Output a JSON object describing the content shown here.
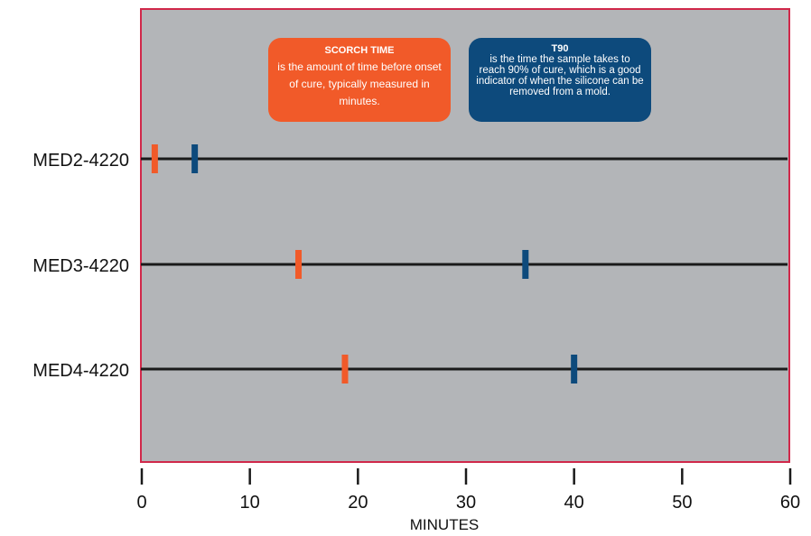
{
  "colors": {
    "plot_background": "#b3b5b8",
    "plot_border": "#d0284a",
    "scorch": "#f15a29",
    "t90": "#0d4a7c",
    "line": "#1a1a1a",
    "text": "#111111"
  },
  "callouts": {
    "scorch": {
      "title": "SCORCH TIME",
      "body": "is the amount of time before onset of cure, typically measured in minutes."
    },
    "t90": {
      "title": "T90",
      "body": "is the time the sample takes to reach 90% of cure, which is a good indicator of when the silicone can be removed from a mold."
    }
  },
  "chart_data": {
    "type": "scatter",
    "title": "",
    "xlabel": "MINUTES",
    "ylabel": "",
    "xlim": [
      0,
      60
    ],
    "xticks": [
      0,
      10,
      20,
      30,
      40,
      50,
      60
    ],
    "grid": false,
    "categories": [
      "MED2-4220",
      "MED3-4220",
      "MED4-4220"
    ],
    "series": [
      {
        "name": "SCORCH TIME",
        "color": "#f15a29",
        "values": [
          1.2,
          14.5,
          18.8
        ]
      },
      {
        "name": "T90",
        "color": "#0d4a7c",
        "values": [
          4.9,
          35.5,
          40.0
        ]
      }
    ]
  }
}
